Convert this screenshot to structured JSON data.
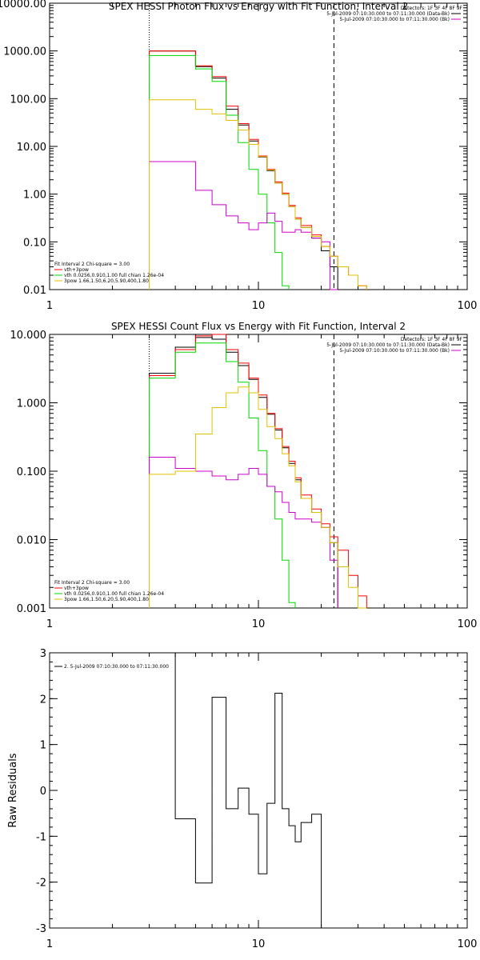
{
  "colors": {
    "black": "#000000",
    "red": "#ff0000",
    "green": "#00d800",
    "magenta": "#cc00cc",
    "yellow": "#e0c000"
  },
  "chart_data": [
    {
      "type": "line",
      "step": true,
      "title": "SPEX HESSI Photon Flux vs Energy with Fit Function, Interval 2",
      "xscale": "log",
      "yscale": "log",
      "xlim": [
        1,
        100
      ],
      "ylim": [
        0.01,
        10000
      ],
      "xticks": [
        {
          "value": 1,
          "label": "1"
        },
        {
          "value": 10,
          "label": "10"
        },
        {
          "value": 100,
          "label": "100"
        }
      ],
      "yticks": [
        {
          "value": 0.01,
          "label": "0.01"
        },
        {
          "value": 0.1,
          "label": "0.10"
        },
        {
          "value": 1,
          "label": "1.00"
        },
        {
          "value": 10,
          "label": "10.00"
        },
        {
          "value": 100,
          "label": "100.00"
        },
        {
          "value": 1000,
          "label": "1000.00"
        },
        {
          "value": 10000,
          "label": "10000.00"
        }
      ],
      "vlines": [
        {
          "x": 3.0,
          "style": "dotted"
        },
        {
          "x": 23.0,
          "style": "dashed"
        }
      ],
      "header": [
        "Detectors: 1F 3F 4F 8F 9F",
        "5-Jul-2009 07:10:30.000 to 07:11:30.000 (Data-Bk)",
        "5-Jul-2009 07:10:30.000 to 07:11:30.000 (Bk)"
      ],
      "legend": [
        {
          "label": "Fit Interval 2   Chi-square = 3.00",
          "color": "none"
        },
        {
          "label": "vth+3pow",
          "color": "red"
        },
        {
          "label": "vth 0.0256,0.910,1.00  full chian 1.26e-04",
          "color": "green"
        },
        {
          "label": "3pow 1.66,1.50,6.20,5.90,400,1.80",
          "color": "yellow"
        }
      ],
      "edges": [
        3,
        4,
        5,
        6,
        7,
        8,
        9,
        10,
        11,
        12,
        13,
        14,
        15,
        16,
        18,
        20,
        22,
        24,
        27,
        30,
        33
      ],
      "series": [
        {
          "color": "black",
          "values": [
            1000,
            1000,
            470,
            270,
            60,
            28,
            13,
            6,
            3.1,
            1.7,
            1.0,
            0.55,
            0.3,
            0.2,
            0.12,
            0.065,
            0.03,
            null,
            null,
            null
          ]
        },
        {
          "color": "red",
          "values": [
            1000,
            1000,
            490,
            290,
            70,
            30,
            14,
            6.3,
            3.3,
            1.8,
            1.05,
            0.58,
            0.32,
            0.22,
            0.14,
            0.08,
            0.05,
            0.03,
            0.02,
            0.012
          ]
        },
        {
          "color": "green",
          "values": [
            800,
            800,
            420,
            230,
            45,
            12,
            3.3,
            1.0,
            0.25,
            0.06,
            0.012,
            null,
            null,
            null,
            null,
            null,
            null,
            null,
            null,
            null
          ]
        },
        {
          "color": "magenta",
          "values": [
            4.8,
            4.8,
            1.2,
            0.6,
            0.35,
            0.25,
            0.18,
            0.25,
            0.4,
            0.27,
            0.16,
            0.16,
            0.18,
            0.16,
            0.12,
            0.1,
            0.01,
            null,
            null,
            null
          ]
        },
        {
          "color": "yellow",
          "values": [
            95,
            95,
            60,
            48,
            35,
            22,
            11,
            6.1,
            3.2,
            1.7,
            1.0,
            0.55,
            0.3,
            0.2,
            0.13,
            0.08,
            0.05,
            0.03,
            0.02,
            0.012
          ]
        }
      ]
    },
    {
      "type": "line",
      "step": true,
      "title": "SPEX HESSI Count Flux vs Energy with Fit Function, Interval 2",
      "xscale": "log",
      "yscale": "log",
      "xlim": [
        1,
        100
      ],
      "ylim": [
        0.001,
        10
      ],
      "xticks": [
        {
          "value": 1,
          "label": "1"
        },
        {
          "value": 10,
          "label": "10"
        },
        {
          "value": 100,
          "label": "100"
        }
      ],
      "yticks": [
        {
          "value": 0.001,
          "label": "0.001"
        },
        {
          "value": 0.01,
          "label": "0.010"
        },
        {
          "value": 0.1,
          "label": "0.100"
        },
        {
          "value": 1,
          "label": "1.000"
        },
        {
          "value": 10,
          "label": "10.000"
        }
      ],
      "vlines": [
        {
          "x": 3.0,
          "style": "dotted"
        },
        {
          "x": 23.0,
          "style": "dashed"
        }
      ],
      "header": [
        "Detectors: 1F 3F 4F 8F 9F",
        "5-Jul-2009 07:10:30.000 to 07:11:30.000 (Data-Bk)",
        "5-Jul-2009 07:10:30.000 to 07:11:30.000 (Bk)"
      ],
      "legend": [
        {
          "label": "Fit Interval 2   Chi-square = 3.00",
          "color": "none"
        },
        {
          "label": "vth+3pow",
          "color": "red"
        },
        {
          "label": "vth 0.0256,0.910,1.00  full chian 1.26e-04",
          "color": "green"
        },
        {
          "label": "3pow 1.66,1.50,6.20,5.90,400,1.80",
          "color": "yellow"
        }
      ],
      "edges": [
        3,
        4,
        5,
        6,
        7,
        8,
        9,
        10,
        11,
        12,
        13,
        14,
        15,
        16,
        18,
        20,
        22,
        24,
        27,
        30,
        33
      ],
      "series": [
        {
          "color": "black",
          "values": [
            2.7,
            6.5,
            9.0,
            8.5,
            5.5,
            3.5,
            2.2,
            1.2,
            0.68,
            0.4,
            0.22,
            0.13,
            0.075,
            0.04,
            0.025,
            0.015,
            0.009,
            null,
            null,
            null
          ]
        },
        {
          "color": "red",
          "values": [
            2.5,
            6.0,
            9.5,
            10.0,
            6.0,
            3.8,
            2.3,
            1.3,
            0.7,
            0.42,
            0.23,
            0.14,
            0.08,
            0.045,
            0.028,
            0.017,
            0.011,
            0.007,
            0.003,
            0.0015
          ]
        },
        {
          "color": "green",
          "values": [
            2.3,
            5.5,
            7.5,
            7.5,
            4.0,
            2.0,
            0.6,
            0.2,
            0.06,
            0.02,
            0.005,
            0.0012,
            null,
            null,
            null,
            null,
            null,
            null,
            null,
            null
          ]
        },
        {
          "color": "magenta",
          "values": [
            0.16,
            0.11,
            0.1,
            0.085,
            0.075,
            0.09,
            0.11,
            0.09,
            0.06,
            0.05,
            0.035,
            0.025,
            0.02,
            0.02,
            0.018,
            0.015,
            0.005,
            null,
            null,
            null
          ]
        },
        {
          "color": "yellow",
          "values": [
            0.09,
            0.1,
            0.35,
            0.85,
            1.4,
            1.7,
            1.4,
            0.8,
            0.45,
            0.3,
            0.18,
            0.12,
            0.07,
            0.04,
            0.025,
            0.015,
            0.009,
            0.004,
            0.002,
            0.001
          ]
        }
      ]
    },
    {
      "type": "line",
      "step": true,
      "title": "",
      "ylabel": "Raw Residuals",
      "xscale": "log",
      "yscale": "linear",
      "xlim": [
        1,
        100
      ],
      "ylim": [
        -3,
        3
      ],
      "xticks": [
        {
          "value": 1,
          "label": "1"
        },
        {
          "value": 10,
          "label": "10"
        },
        {
          "value": 100,
          "label": "100"
        }
      ],
      "yticks": [
        {
          "value": -3,
          "label": "-3"
        },
        {
          "value": -2,
          "label": "-2"
        },
        {
          "value": -1,
          "label": "-1"
        },
        {
          "value": 0,
          "label": "0"
        },
        {
          "value": 1,
          "label": "1"
        },
        {
          "value": 2,
          "label": "2"
        },
        {
          "value": 3,
          "label": "3"
        }
      ],
      "vlines": [],
      "header": [],
      "legend": [
        {
          "label": "2.  5-Jul-2009 07:10:30.000 to 07:11:30.000",
          "color": "black"
        }
      ],
      "edges": [
        3,
        4,
        5,
        6,
        7,
        8,
        9,
        10,
        11,
        12,
        13,
        14,
        15,
        16,
        18,
        20,
        22
      ],
      "series": [
        {
          "color": "black",
          "values": [
            3.0,
            -0.62,
            -2.02,
            2.03,
            -0.4,
            0.05,
            -0.52,
            -1.82,
            -0.28,
            2.12,
            -0.4,
            -0.77,
            -1.12,
            -0.7,
            -0.52,
            -3.0
          ]
        }
      ]
    }
  ]
}
